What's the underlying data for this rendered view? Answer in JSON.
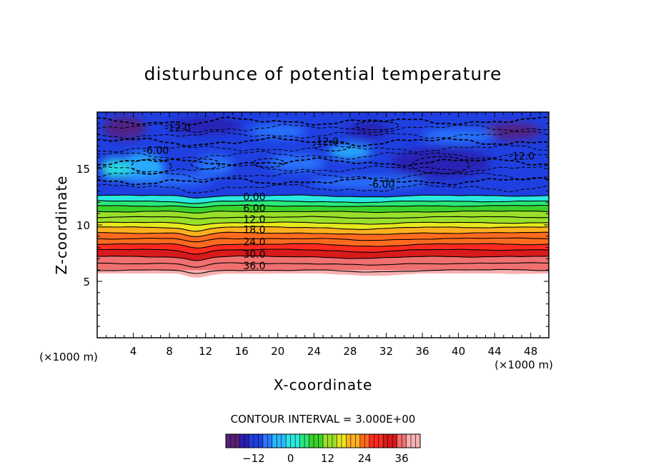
{
  "chart_data": {
    "type": "contour",
    "title": "disturbunce of potential temperature",
    "xlabel": "X-coordinate",
    "ylabel": "Z-coordinate",
    "x_unit": "(×1000 m)",
    "y_unit": "(×1000 m)",
    "xlim": [
      0,
      50
    ],
    "ylim": [
      0,
      20
    ],
    "x_ticks": [
      4,
      8,
      12,
      16,
      20,
      24,
      28,
      32,
      36,
      40,
      44,
      48
    ],
    "y_ticks": [
      5,
      10,
      15
    ],
    "contour_interval_text": "CONTOUR INTERVAL = 3.000E+00",
    "colorbar": {
      "range": [
        -21,
        42
      ],
      "tick_values": [
        -12,
        0,
        12,
        24,
        36
      ],
      "colors": [
        "#5a1f7a",
        "#2a1fae",
        "#1f3fe0",
        "#2a7aff",
        "#2ab8ff",
        "#2ae8e0",
        "#2ae87a",
        "#3ad22a",
        "#9ae02a",
        "#e8e81f",
        "#ffb01f",
        "#ff6a1f",
        "#ff2a1f",
        "#d81a1a",
        "#f07070",
        "#f8b0b0"
      ]
    },
    "contour_labels": [
      {
        "text": "-12.0",
        "x": 8.9,
        "y": 18.6
      },
      {
        "text": "-6.00",
        "x": 6.5,
        "y": 16.6
      },
      {
        "text": "-12.0",
        "x": 25.3,
        "y": 17.4
      },
      {
        "text": "-12.0",
        "x": 47.0,
        "y": 16.1
      },
      {
        "text": "-6.00",
        "x": 31.5,
        "y": 13.6
      },
      {
        "text": "0.00",
        "x": 17.4,
        "y": 12.5
      },
      {
        "text": "6.00",
        "x": 17.4,
        "y": 11.5
      },
      {
        "text": "12.0",
        "x": 17.4,
        "y": 10.5
      },
      {
        "text": "18.0",
        "x": 17.4,
        "y": 9.6
      },
      {
        "text": "24.0",
        "x": 17.4,
        "y": 8.5
      },
      {
        "text": "30.0",
        "x": 17.4,
        "y": 7.4
      },
      {
        "text": "36.0",
        "x": 17.4,
        "y": 6.4
      }
    ],
    "stable_levels": [
      {
        "value": 0,
        "z": 12.6
      },
      {
        "value": 3,
        "z": 12.1
      },
      {
        "value": 6,
        "z": 11.7
      },
      {
        "value": 9,
        "z": 11.2
      },
      {
        "value": 12,
        "z": 10.7
      },
      {
        "value": 15,
        "z": 10.2
      },
      {
        "value": 18,
        "z": 9.8
      },
      {
        "value": 21,
        "z": 9.3
      },
      {
        "value": 24,
        "z": 8.8
      },
      {
        "value": 27,
        "z": 8.3
      },
      {
        "value": 30,
        "z": 7.8
      },
      {
        "value": 33,
        "z": 7.2
      },
      {
        "value": 36,
        "z": 6.6
      },
      {
        "value": 39,
        "z": 6.0
      }
    ]
  }
}
